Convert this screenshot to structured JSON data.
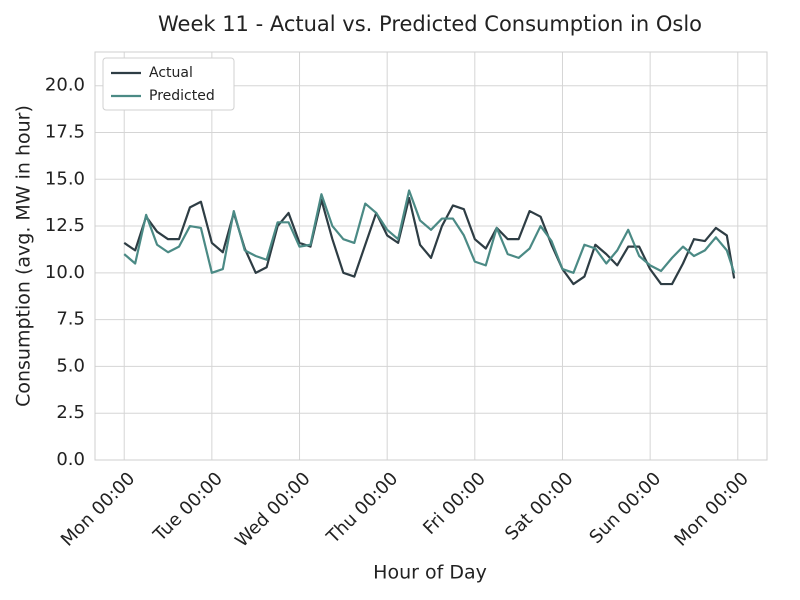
{
  "chart_data": {
    "type": "line",
    "title": "Week 11 - Actual vs. Predicted Consumption in Oslo",
    "x_label": "Hour of Day",
    "y_label": "Consumption (avg. MW in hour)",
    "x": [
      0,
      3,
      6,
      9,
      12,
      15,
      18,
      21,
      24,
      27,
      30,
      33,
      36,
      39,
      42,
      45,
      48,
      51,
      54,
      57,
      60,
      63,
      66,
      69,
      72,
      75,
      78,
      81,
      84,
      87,
      90,
      93,
      96,
      99,
      102,
      105,
      108,
      111,
      114,
      117,
      120,
      123,
      126,
      129,
      132,
      135,
      138,
      141,
      144,
      147,
      150,
      153,
      156,
      159,
      162,
      165,
      167
    ],
    "series": [
      {
        "name": "Actual",
        "color": "#2e3d44",
        "values": [
          11.6,
          11.2,
          13.0,
          12.2,
          11.8,
          11.8,
          13.5,
          13.8,
          11.6,
          11.1,
          13.2,
          11.3,
          10.0,
          10.3,
          12.5,
          13.2,
          11.6,
          11.4,
          13.9,
          11.8,
          10.0,
          9.8,
          11.5,
          13.2,
          12.0,
          11.6,
          14.0,
          11.5,
          10.8,
          12.5,
          13.6,
          13.4,
          11.8,
          11.3,
          12.4,
          11.8,
          11.8,
          13.3,
          13.0,
          11.5,
          10.2,
          9.4,
          9.8,
          11.5,
          11.0,
          10.4,
          11.4,
          11.4,
          10.2,
          9.4,
          9.4,
          10.5,
          11.8,
          11.7,
          12.4,
          12.0,
          9.7
        ]
      },
      {
        "name": "Predicted",
        "color": "#4b8a85",
        "values": [
          11.0,
          10.5,
          13.1,
          11.5,
          11.1,
          11.4,
          12.5,
          12.4,
          10.0,
          10.2,
          13.3,
          11.2,
          10.9,
          10.7,
          12.7,
          12.7,
          11.4,
          11.5,
          14.2,
          12.5,
          11.8,
          11.6,
          13.7,
          13.2,
          12.3,
          11.8,
          14.4,
          12.8,
          12.3,
          12.9,
          12.9,
          12.0,
          10.6,
          10.4,
          12.4,
          11.0,
          10.8,
          11.3,
          12.5,
          11.7,
          10.2,
          10.0,
          11.5,
          11.3,
          10.5,
          11.2,
          12.3,
          10.9,
          10.4,
          10.1,
          10.8,
          11.4,
          10.9,
          11.2,
          11.9,
          11.2,
          10.0
        ]
      }
    ],
    "xlim": [
      -8,
      176
    ],
    "xticks": [
      {
        "value": 0,
        "label": "Mon 00:00"
      },
      {
        "value": 24,
        "label": "Tue 00:00"
      },
      {
        "value": 48,
        "label": "Wed 00:00"
      },
      {
        "value": 72,
        "label": "Thu 00:00"
      },
      {
        "value": 96,
        "label": "Fri 00:00"
      },
      {
        "value": 120,
        "label": "Sat 00:00"
      },
      {
        "value": 144,
        "label": "Sun 00:00"
      },
      {
        "value": 168,
        "label": "Mon 00:00"
      }
    ],
    "ylim": [
      0,
      21.8
    ],
    "yticks": [
      {
        "value": 0,
        "label": "0.0"
      },
      {
        "value": 2.5,
        "label": "2.5"
      },
      {
        "value": 5,
        "label": "5.0"
      },
      {
        "value": 7.5,
        "label": "7.5"
      },
      {
        "value": 10,
        "label": "10.0"
      },
      {
        "value": 12.5,
        "label": "12.5"
      },
      {
        "value": 15,
        "label": "15.0"
      },
      {
        "value": 17.5,
        "label": "17.5"
      },
      {
        "value": 20,
        "label": "20.0"
      }
    ],
    "grid": true,
    "legend": "upper-left"
  }
}
